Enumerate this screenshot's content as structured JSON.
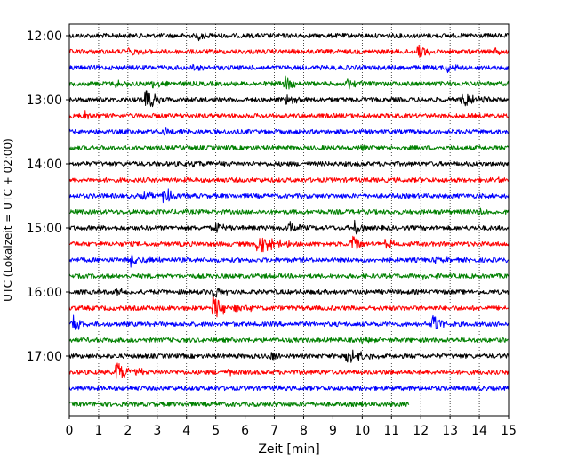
{
  "chart_data": {
    "type": "line",
    "xlabel": "Zeit  [min]",
    "ylabel": "UTC (Lokalzeit = UTC + 02:00)",
    "xlim": [
      0,
      15
    ],
    "x_ticks": [
      "0",
      "1",
      "2",
      "3",
      "4",
      "5",
      "6",
      "7",
      "8",
      "9",
      "10",
      "11",
      "12",
      "13",
      "14",
      "15"
    ],
    "y_tick_labels": [
      "12:00",
      "13:00",
      "14:00",
      "15:00",
      "16:00",
      "17:00"
    ],
    "trace_interval_min": 15,
    "grid": "vertical-dotted",
    "colors": [
      "#000000",
      "#ff0000",
      "#0000ff",
      "#008000"
    ],
    "series": [
      {
        "start": "12:00",
        "color": "#000000",
        "end_min": 15,
        "events": [
          {
            "t": 4.4,
            "amp": 5
          }
        ]
      },
      {
        "start": "12:15",
        "color": "#ff0000",
        "end_min": 15,
        "events": [
          {
            "t": 2.0,
            "amp": 5
          },
          {
            "t": 11.9,
            "amp": 11
          },
          {
            "t": 14.5,
            "amp": 4
          }
        ]
      },
      {
        "start": "12:30",
        "color": "#0000ff",
        "end_min": 15,
        "events": [
          {
            "t": 4.2,
            "amp": 4
          },
          {
            "t": 12.9,
            "amp": 6
          }
        ]
      },
      {
        "start": "12:45",
        "color": "#008000",
        "end_min": 15,
        "events": [
          {
            "t": 1.6,
            "amp": 7
          },
          {
            "t": 2.8,
            "amp": 9
          },
          {
            "t": 7.3,
            "amp": 13
          },
          {
            "t": 9.5,
            "amp": 6
          }
        ]
      },
      {
        "start": "13:00",
        "color": "#000000",
        "end_min": 15,
        "events": [
          {
            "t": 2.6,
            "amp": 18
          },
          {
            "t": 7.4,
            "amp": 7
          },
          {
            "t": 13.4,
            "amp": 8,
            "dur": 0.5
          }
        ]
      },
      {
        "start": "13:15",
        "color": "#ff0000",
        "end_min": 15,
        "events": [
          {
            "t": 0.5,
            "amp": 6
          }
        ]
      },
      {
        "start": "13:30",
        "color": "#0000ff",
        "end_min": 15,
        "events": [
          {
            "t": 3.2,
            "amp": 4
          }
        ]
      },
      {
        "start": "13:45",
        "color": "#008000",
        "end_min": 15,
        "events": [
          {
            "t": 9.8,
            "amp": 3
          }
        ]
      },
      {
        "start": "14:00",
        "color": "#000000",
        "end_min": 15,
        "events": [
          {
            "t": 4.0,
            "amp": 4,
            "dur": 0.6
          },
          {
            "t": 14.6,
            "amp": 4
          }
        ]
      },
      {
        "start": "14:15",
        "color": "#ff0000",
        "end_min": 15,
        "events": [
          {
            "t": 14.5,
            "amp": 3
          }
        ]
      },
      {
        "start": "14:30",
        "color": "#0000ff",
        "end_min": 15,
        "events": [
          {
            "t": 2.5,
            "amp": 4
          },
          {
            "t": 3.2,
            "amp": 14
          }
        ]
      },
      {
        "start": "14:45",
        "color": "#008000",
        "end_min": 15,
        "events": [
          {
            "t": 14.0,
            "amp": 4
          }
        ]
      },
      {
        "start": "15:00",
        "color": "#000000",
        "end_min": 15,
        "events": [
          {
            "t": 5.0,
            "amp": 8
          },
          {
            "t": 7.5,
            "amp": 8
          },
          {
            "t": 9.7,
            "amp": 9
          }
        ]
      },
      {
        "start": "15:15",
        "color": "#ff0000",
        "end_min": 15,
        "events": [
          {
            "t": 6.4,
            "amp": 13,
            "dur": 0.5
          },
          {
            "t": 9.6,
            "amp": 13
          },
          {
            "t": 10.8,
            "amp": 6
          }
        ]
      },
      {
        "start": "15:30",
        "color": "#0000ff",
        "end_min": 15,
        "events": [
          {
            "t": 2.1,
            "amp": 8
          },
          {
            "t": 2.8,
            "amp": 5
          },
          {
            "t": 12.5,
            "amp": 3
          }
        ]
      },
      {
        "start": "15:45",
        "color": "#008000",
        "end_min": 15,
        "events": [
          {
            "t": 12.0,
            "amp": 3
          }
        ]
      },
      {
        "start": "16:00",
        "color": "#000000",
        "end_min": 15,
        "events": [
          {
            "t": 1.6,
            "amp": 4
          },
          {
            "t": 4.9,
            "amp": 9
          }
        ]
      },
      {
        "start": "16:15",
        "color": "#ff0000",
        "end_min": 15,
        "events": [
          {
            "t": 4.9,
            "amp": 12,
            "dur": 0.6
          }
        ]
      },
      {
        "start": "16:30",
        "color": "#0000ff",
        "end_min": 15,
        "events": [
          {
            "t": 0.1,
            "amp": 10
          },
          {
            "t": 12.4,
            "amp": 13
          }
        ]
      },
      {
        "start": "16:45",
        "color": "#008000",
        "end_min": 15,
        "events": [
          {
            "t": 10.0,
            "amp": 3
          }
        ]
      },
      {
        "start": "17:00",
        "color": "#000000",
        "end_min": 15,
        "events": [
          {
            "t": 6.9,
            "amp": 6
          },
          {
            "t": 9.4,
            "amp": 9,
            "dur": 0.6
          }
        ]
      },
      {
        "start": "17:15",
        "color": "#ff0000",
        "end_min": 15,
        "events": [
          {
            "t": 1.6,
            "amp": 11,
            "dur": 0.5
          },
          {
            "t": 5.4,
            "amp": 3
          }
        ]
      },
      {
        "start": "17:30",
        "color": "#0000ff",
        "end_min": 15,
        "events": [
          {
            "t": 7.0,
            "amp": 3
          }
        ]
      },
      {
        "start": "17:45",
        "color": "#008000",
        "end_min": 11.6,
        "events": []
      }
    ]
  }
}
